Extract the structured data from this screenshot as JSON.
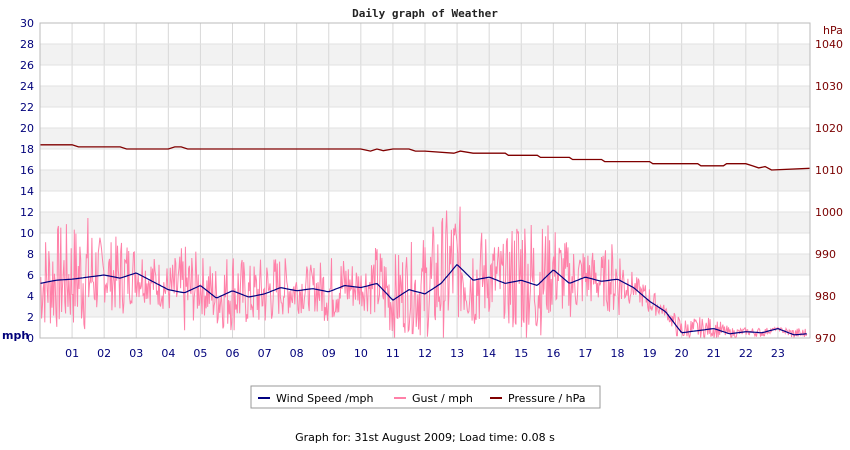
{
  "chart_data": {
    "type": "line",
    "title": "Daily graph of Weather",
    "left_axis": {
      "unit": "mph",
      "range": [
        0,
        30
      ],
      "ticks": [
        0,
        2,
        4,
        6,
        8,
        10,
        12,
        14,
        16,
        18,
        20,
        22,
        24,
        26,
        28,
        30
      ]
    },
    "right_axis": {
      "unit": "hPa",
      "range": [
        970,
        1045
      ],
      "ticks": [
        970,
        980,
        990,
        1000,
        1010,
        1020,
        1030,
        1040
      ]
    },
    "x_axis": {
      "range": [
        0,
        24
      ],
      "ticks": [
        "01",
        "02",
        "03",
        "04",
        "05",
        "06",
        "07",
        "08",
        "09",
        "10",
        "11",
        "12",
        "13",
        "14",
        "15",
        "16",
        "17",
        "18",
        "19",
        "20",
        "21",
        "22",
        "23"
      ]
    },
    "grid": true,
    "legend_position": "bottom-center",
    "series": [
      {
        "name": "Wind Speed /mph",
        "axis": "left",
        "color": "#000080",
        "x": [
          0,
          0.5,
          1,
          1.5,
          2,
          2.5,
          3,
          3.5,
          4,
          4.5,
          5,
          5.5,
          6,
          6.5,
          7,
          7.5,
          8,
          8.5,
          9,
          9.5,
          10,
          10.5,
          11,
          11.5,
          12,
          12.5,
          13,
          13.5,
          14,
          14.5,
          15,
          15.5,
          16,
          16.5,
          17,
          17.5,
          18,
          18.5,
          19,
          19.5,
          20,
          20.5,
          21,
          21.5,
          22,
          22.5,
          23,
          23.5,
          23.9
        ],
        "values": [
          5.2,
          5.5,
          5.6,
          5.8,
          6.0,
          5.7,
          6.2,
          5.4,
          4.6,
          4.3,
          5.0,
          3.8,
          4.5,
          3.9,
          4.2,
          4.8,
          4.5,
          4.7,
          4.4,
          5.0,
          4.8,
          5.2,
          3.6,
          4.6,
          4.2,
          5.2,
          7.0,
          5.5,
          5.8,
          5.2,
          5.5,
          5.0,
          6.5,
          5.2,
          5.8,
          5.4,
          5.6,
          4.8,
          3.5,
          2.5,
          0.5,
          0.7,
          0.9,
          0.4,
          0.6,
          0.5,
          0.9,
          0.3,
          0.4
        ]
      },
      {
        "name": "Gust / mph",
        "axis": "left",
        "color": "#ff80a8",
        "x": [
          0,
          0.5,
          1,
          1.5,
          2,
          2.5,
          3,
          3.5,
          4,
          4.5,
          5,
          5.5,
          6,
          6.5,
          7,
          7.5,
          8,
          8.5,
          9,
          9.5,
          10,
          10.5,
          11,
          11.5,
          12,
          12.5,
          13,
          13.5,
          14,
          14.5,
          15,
          15.5,
          16,
          16.5,
          17,
          17.5,
          18,
          18.5,
          19,
          19.5,
          20,
          20.5,
          21,
          21.5,
          22,
          22.5,
          23,
          23.5,
          23.9
        ],
        "values": [
          10,
          11,
          11,
          12,
          9,
          10,
          9,
          8,
          7,
          9,
          8,
          7,
          9,
          7,
          8,
          8,
          7,
          7,
          8,
          8,
          7,
          9,
          8,
          9,
          10,
          12,
          13,
          11,
          10,
          9,
          14,
          11,
          11,
          9,
          9,
          8,
          10,
          6,
          5,
          3,
          2,
          2,
          2,
          1,
          1,
          1,
          1,
          1,
          1
        ]
      },
      {
        "name": "Pressure / hPa",
        "axis": "right",
        "color": "#800000",
        "x": [
          0,
          1,
          1.2,
          2.5,
          2.7,
          4.0,
          4.2,
          4.4,
          4.6,
          10.0,
          10.3,
          10.5,
          10.7,
          11.0,
          11.5,
          11.7,
          12.0,
          12.9,
          13.1,
          13.5,
          14.5,
          14.6,
          15.5,
          15.6,
          16.5,
          16.6,
          17.5,
          17.6,
          19.0,
          19.1,
          20.5,
          20.6,
          21.3,
          21.4,
          22.0,
          22.2,
          22.4,
          22.6,
          22.8,
          24.0
        ],
        "values": [
          1016,
          1016,
          1015.5,
          1015.5,
          1015,
          1015,
          1015.5,
          1015.5,
          1015,
          1015,
          1014.5,
          1015,
          1014.6,
          1015,
          1015,
          1014.5,
          1014.5,
          1014.0,
          1014.5,
          1014,
          1014,
          1013.5,
          1013.5,
          1013,
          1013,
          1012.5,
          1012.5,
          1012,
          1012,
          1011.5,
          1011.5,
          1011,
          1011,
          1011.5,
          1011.5,
          1011,
          1010.5,
          1010.8,
          1010,
          1010.4
        ]
      }
    ]
  },
  "footer": {
    "text": "Graph for: 31st August 2009; Load time: 0.08 s"
  }
}
